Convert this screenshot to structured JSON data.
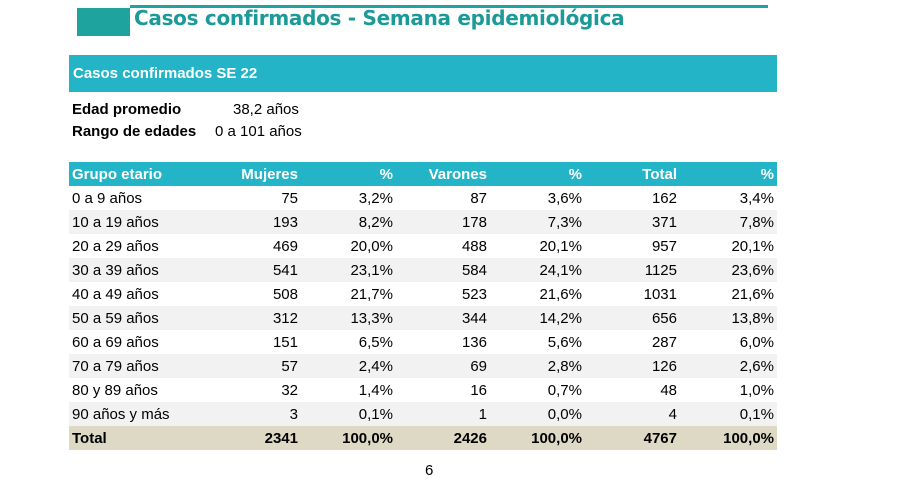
{
  "title": "Casos confirmados - Semana epidemiológica",
  "section": "Casos confirmados SE 22",
  "info": [
    {
      "label": "Edad promedio",
      "value": "38,2 años"
    },
    {
      "label": "Rango de edades",
      "value": "0 a 101 años"
    }
  ],
  "table": {
    "headers": [
      "Grupo etario",
      "Mujeres",
      "%",
      "Varones",
      "%",
      "Total",
      "%"
    ],
    "rows": [
      [
        "0 a 9 años",
        "75",
        "3,2%",
        "87",
        "3,6%",
        "162",
        "3,4%"
      ],
      [
        "10 a 19 años",
        "193",
        "8,2%",
        "178",
        "7,3%",
        "371",
        "7,8%"
      ],
      [
        "20 a 29 años",
        "469",
        "20,0%",
        "488",
        "20,1%",
        "957",
        "20,1%"
      ],
      [
        "30 a 39 años",
        "541",
        "23,1%",
        "584",
        "24,1%",
        "1125",
        "23,6%"
      ],
      [
        "40 a 49 años",
        "508",
        "21,7%",
        "523",
        "21,6%",
        "1031",
        "21,6%"
      ],
      [
        "50 a 59 años",
        "312",
        "13,3%",
        "344",
        "14,2%",
        "656",
        "13,8%"
      ],
      [
        "60 a 69 años",
        "151",
        "6,5%",
        "136",
        "5,6%",
        "287",
        "6,0%"
      ],
      [
        "70 a 79 años",
        "57",
        "2,4%",
        "69",
        "2,8%",
        "126",
        "2,6%"
      ],
      [
        "80 y 89 años",
        "32",
        "1,4%",
        "16",
        "0,7%",
        "48",
        "1,0%"
      ],
      [
        "90 años y más",
        "3",
        "0,1%",
        "1",
        "0,0%",
        "4",
        "0,1%"
      ]
    ],
    "total": [
      "Total",
      "2341",
      "100,0%",
      "2426",
      "100,0%",
      "4767",
      "100,0%"
    ]
  },
  "page_number": "6"
}
